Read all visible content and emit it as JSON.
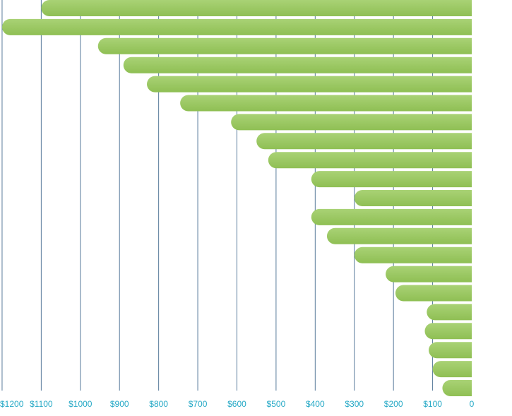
{
  "chart_data": {
    "type": "bar",
    "orientation": "horizontal",
    "x_direction": "reversed",
    "title": "",
    "xlabel": "",
    "ylabel": "",
    "xlim": [
      0,
      1200
    ],
    "x_ticks": [
      0,
      100,
      200,
      300,
      400,
      500,
      600,
      700,
      800,
      900,
      1000,
      1100,
      1200
    ],
    "x_tick_labels": [
      "0",
      "$100",
      "$200",
      "$300",
      "$400",
      "$500",
      "$600",
      "$700",
      "$800",
      "$900",
      "$1000",
      "$1100",
      "$1200"
    ],
    "values": [
      1100,
      1200,
      955,
      890,
      830,
      745,
      615,
      550,
      520,
      410,
      300,
      410,
      370,
      300,
      220,
      195,
      115,
      120,
      110,
      100,
      75
    ],
    "grid": "vertical",
    "colors": {
      "bar_light": "#a9d275",
      "bar_dark": "#8fbf54",
      "grid": "#1f4e79",
      "tick_label": "#26a9c6"
    }
  }
}
